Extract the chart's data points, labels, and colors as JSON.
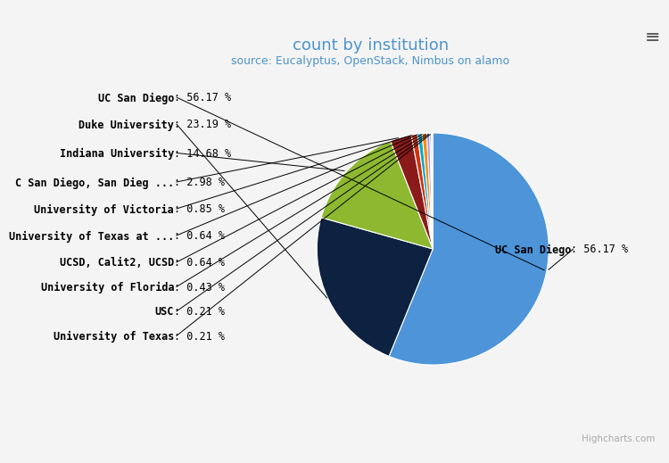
{
  "title": "count by institution",
  "subtitle": "source: Eucalyptus, OpenStack, Nimbus on alamo",
  "title_color": "#4d94cc",
  "subtitle_color": "#4d94cc",
  "background_color": "#f4f4f4",
  "slices": [
    {
      "label": "UC San Diego",
      "pct": 56.17,
      "color": "#4d94d9"
    },
    {
      "label": "Duke University",
      "pct": 23.19,
      "color": "#0d2240"
    },
    {
      "label": "Indiana University",
      "pct": 14.68,
      "color": "#8db830"
    },
    {
      "label": "C San Diego, San Dieg ...",
      "pct": 2.98,
      "color": "#8b1a1a"
    },
    {
      "label": "University of Victoria",
      "pct": 0.85,
      "color": "#cc3311"
    },
    {
      "label": "University of Texas at ...",
      "pct": 0.64,
      "color": "#00aacc"
    },
    {
      "label": "UCSD, Calit2, UCSD",
      "pct": 0.64,
      "color": "#ff8800"
    },
    {
      "label": "University of Florida",
      "pct": 0.43,
      "color": "#9999ee"
    },
    {
      "label": "USC",
      "pct": 0.21,
      "color": "#888888"
    },
    {
      "label": "University of Texas",
      "pct": 0.21,
      "color": "#cccccc"
    }
  ],
  "hamburger_color": "#555555",
  "watermark_color": "#aaaaaa",
  "label_fontsize": 8.5,
  "title_fontsize": 13,
  "subtitle_fontsize": 9
}
